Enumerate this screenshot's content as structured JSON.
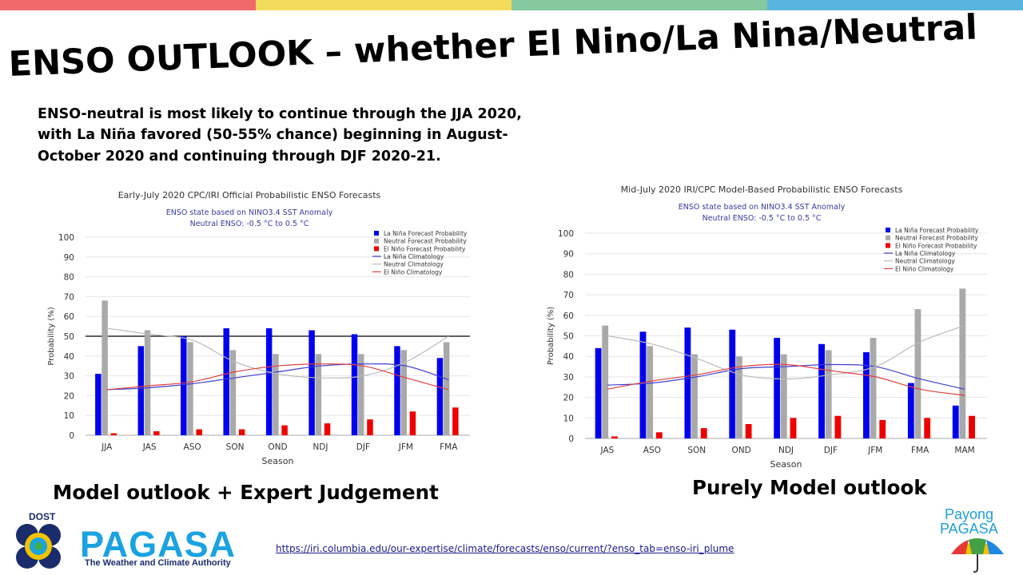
{
  "slide": {
    "title": "ENSO OUTLOOK – whether El Nino/La Nina/Neutral",
    "summary": "ENSO-neutral is most likely to continue through the JJA 2020, with La Niña favored (50-55% chance) beginning in August-October 2020 and continuing through DJF 2020-21.",
    "caption_left": "Model outlook + Expert Judgement",
    "caption_right": "Purely Model outlook",
    "source_link": "https://iri.columbia.edu/our-expertise/climate/forecasts/enso/current/?enso_tab=enso-iri_plume",
    "topbar_colors": [
      "#f06a6a",
      "#f3dc5c",
      "#86c9a0",
      "#5ab4e0"
    ]
  },
  "branding": {
    "dost": "DOST",
    "pagasa": "PAGASA",
    "tagline": "The Weather and Climate Authority",
    "payong_line1": "Payong",
    "payong_line2": "PAGASA"
  },
  "chart_data": [
    {
      "type": "bar",
      "title": "Early-July 2020 CPC/IRI Official Probabilistic ENSO Forecasts",
      "subtitle1": "ENSO state based on NINO3.4 SST Anomaly",
      "subtitle2": "Neutral ENSO: -0.5 °C to 0.5 °C",
      "xlabel": "Season",
      "ylabel": "Probability (%)",
      "ylim": [
        0,
        100
      ],
      "yticks": [
        0,
        10,
        20,
        30,
        40,
        50,
        60,
        70,
        80,
        90,
        100
      ],
      "reference_line": 50,
      "categories": [
        "JJA",
        "JAS",
        "ASO",
        "SON",
        "OND",
        "NDJ",
        "DJF",
        "JFM",
        "FMA"
      ],
      "series": [
        {
          "name": "La Niña Forecast Probability",
          "color": "#0000ee",
          "values": [
            31,
            45,
            50,
            54,
            54,
            53,
            51,
            45,
            39
          ]
        },
        {
          "name": "Neutral Forecast Probability",
          "color": "#a9a9a9",
          "values": [
            68,
            53,
            47,
            43,
            41,
            41,
            41,
            43,
            47
          ]
        },
        {
          "name": "El Niño Forecast Probability",
          "color": "#ee0000",
          "values": [
            1,
            2,
            3,
            3,
            5,
            6,
            8,
            12,
            14
          ]
        }
      ],
      "climatology": [
        {
          "name": "La Niña Climatology",
          "color": "#4040d0",
          "values": [
            23,
            24,
            26,
            29,
            32,
            35,
            36,
            35,
            28
          ]
        },
        {
          "name": "Neutral Climatology",
          "color": "#bbbbbb",
          "values": [
            54,
            51,
            48,
            37,
            31,
            29,
            30,
            37,
            50
          ]
        },
        {
          "name": "El Niño Climatology",
          "color": "#e04040",
          "values": [
            23,
            25,
            27,
            32,
            35,
            36,
            35,
            29,
            23
          ]
        }
      ],
      "legend_position": "top-right"
    },
    {
      "type": "bar",
      "title": "Mid-July 2020 IRI/CPC Model-Based Probabilistic ENSO Forecasts",
      "subtitle1": "ENSO state based on NINO3.4 SST Anomaly",
      "subtitle2": "Neutral ENSO: -0.5 °C to 0.5 °C",
      "xlabel": "Season",
      "ylabel": "Probability (%)",
      "ylim": [
        0,
        100
      ],
      "yticks": [
        0,
        10,
        20,
        30,
        40,
        50,
        60,
        70,
        80,
        90,
        100
      ],
      "reference_line": null,
      "categories": [
        "JAS",
        "ASO",
        "SON",
        "OND",
        "NDJ",
        "DJF",
        "JFM",
        "FMA",
        "MAM"
      ],
      "series": [
        {
          "name": "La Niña Forecast Probability",
          "color": "#0000ee",
          "values": [
            44,
            52,
            54,
            53,
            49,
            46,
            42,
            27,
            16
          ]
        },
        {
          "name": "Neutral Forecast Probability",
          "color": "#a9a9a9",
          "values": [
            55,
            45,
            41,
            40,
            41,
            43,
            49,
            63,
            73
          ]
        },
        {
          "name": "El Niño Forecast Probability",
          "color": "#ee0000",
          "values": [
            1,
            3,
            5,
            7,
            10,
            11,
            9,
            10,
            11
          ]
        }
      ],
      "climatology": [
        {
          "name": "La Niña Climatology",
          "color": "#4040d0",
          "values": [
            26,
            27,
            30,
            34,
            35,
            36,
            35,
            29,
            24
          ]
        },
        {
          "name": "Neutral Climatology",
          "color": "#bbbbbb",
          "values": [
            50,
            46,
            39,
            31,
            29,
            31,
            35,
            47,
            55
          ]
        },
        {
          "name": "El Niño Climatology",
          "color": "#e04040",
          "values": [
            24,
            28,
            31,
            35,
            36,
            33,
            30,
            24,
            21
          ]
        }
      ],
      "legend_position": "top-right"
    }
  ]
}
